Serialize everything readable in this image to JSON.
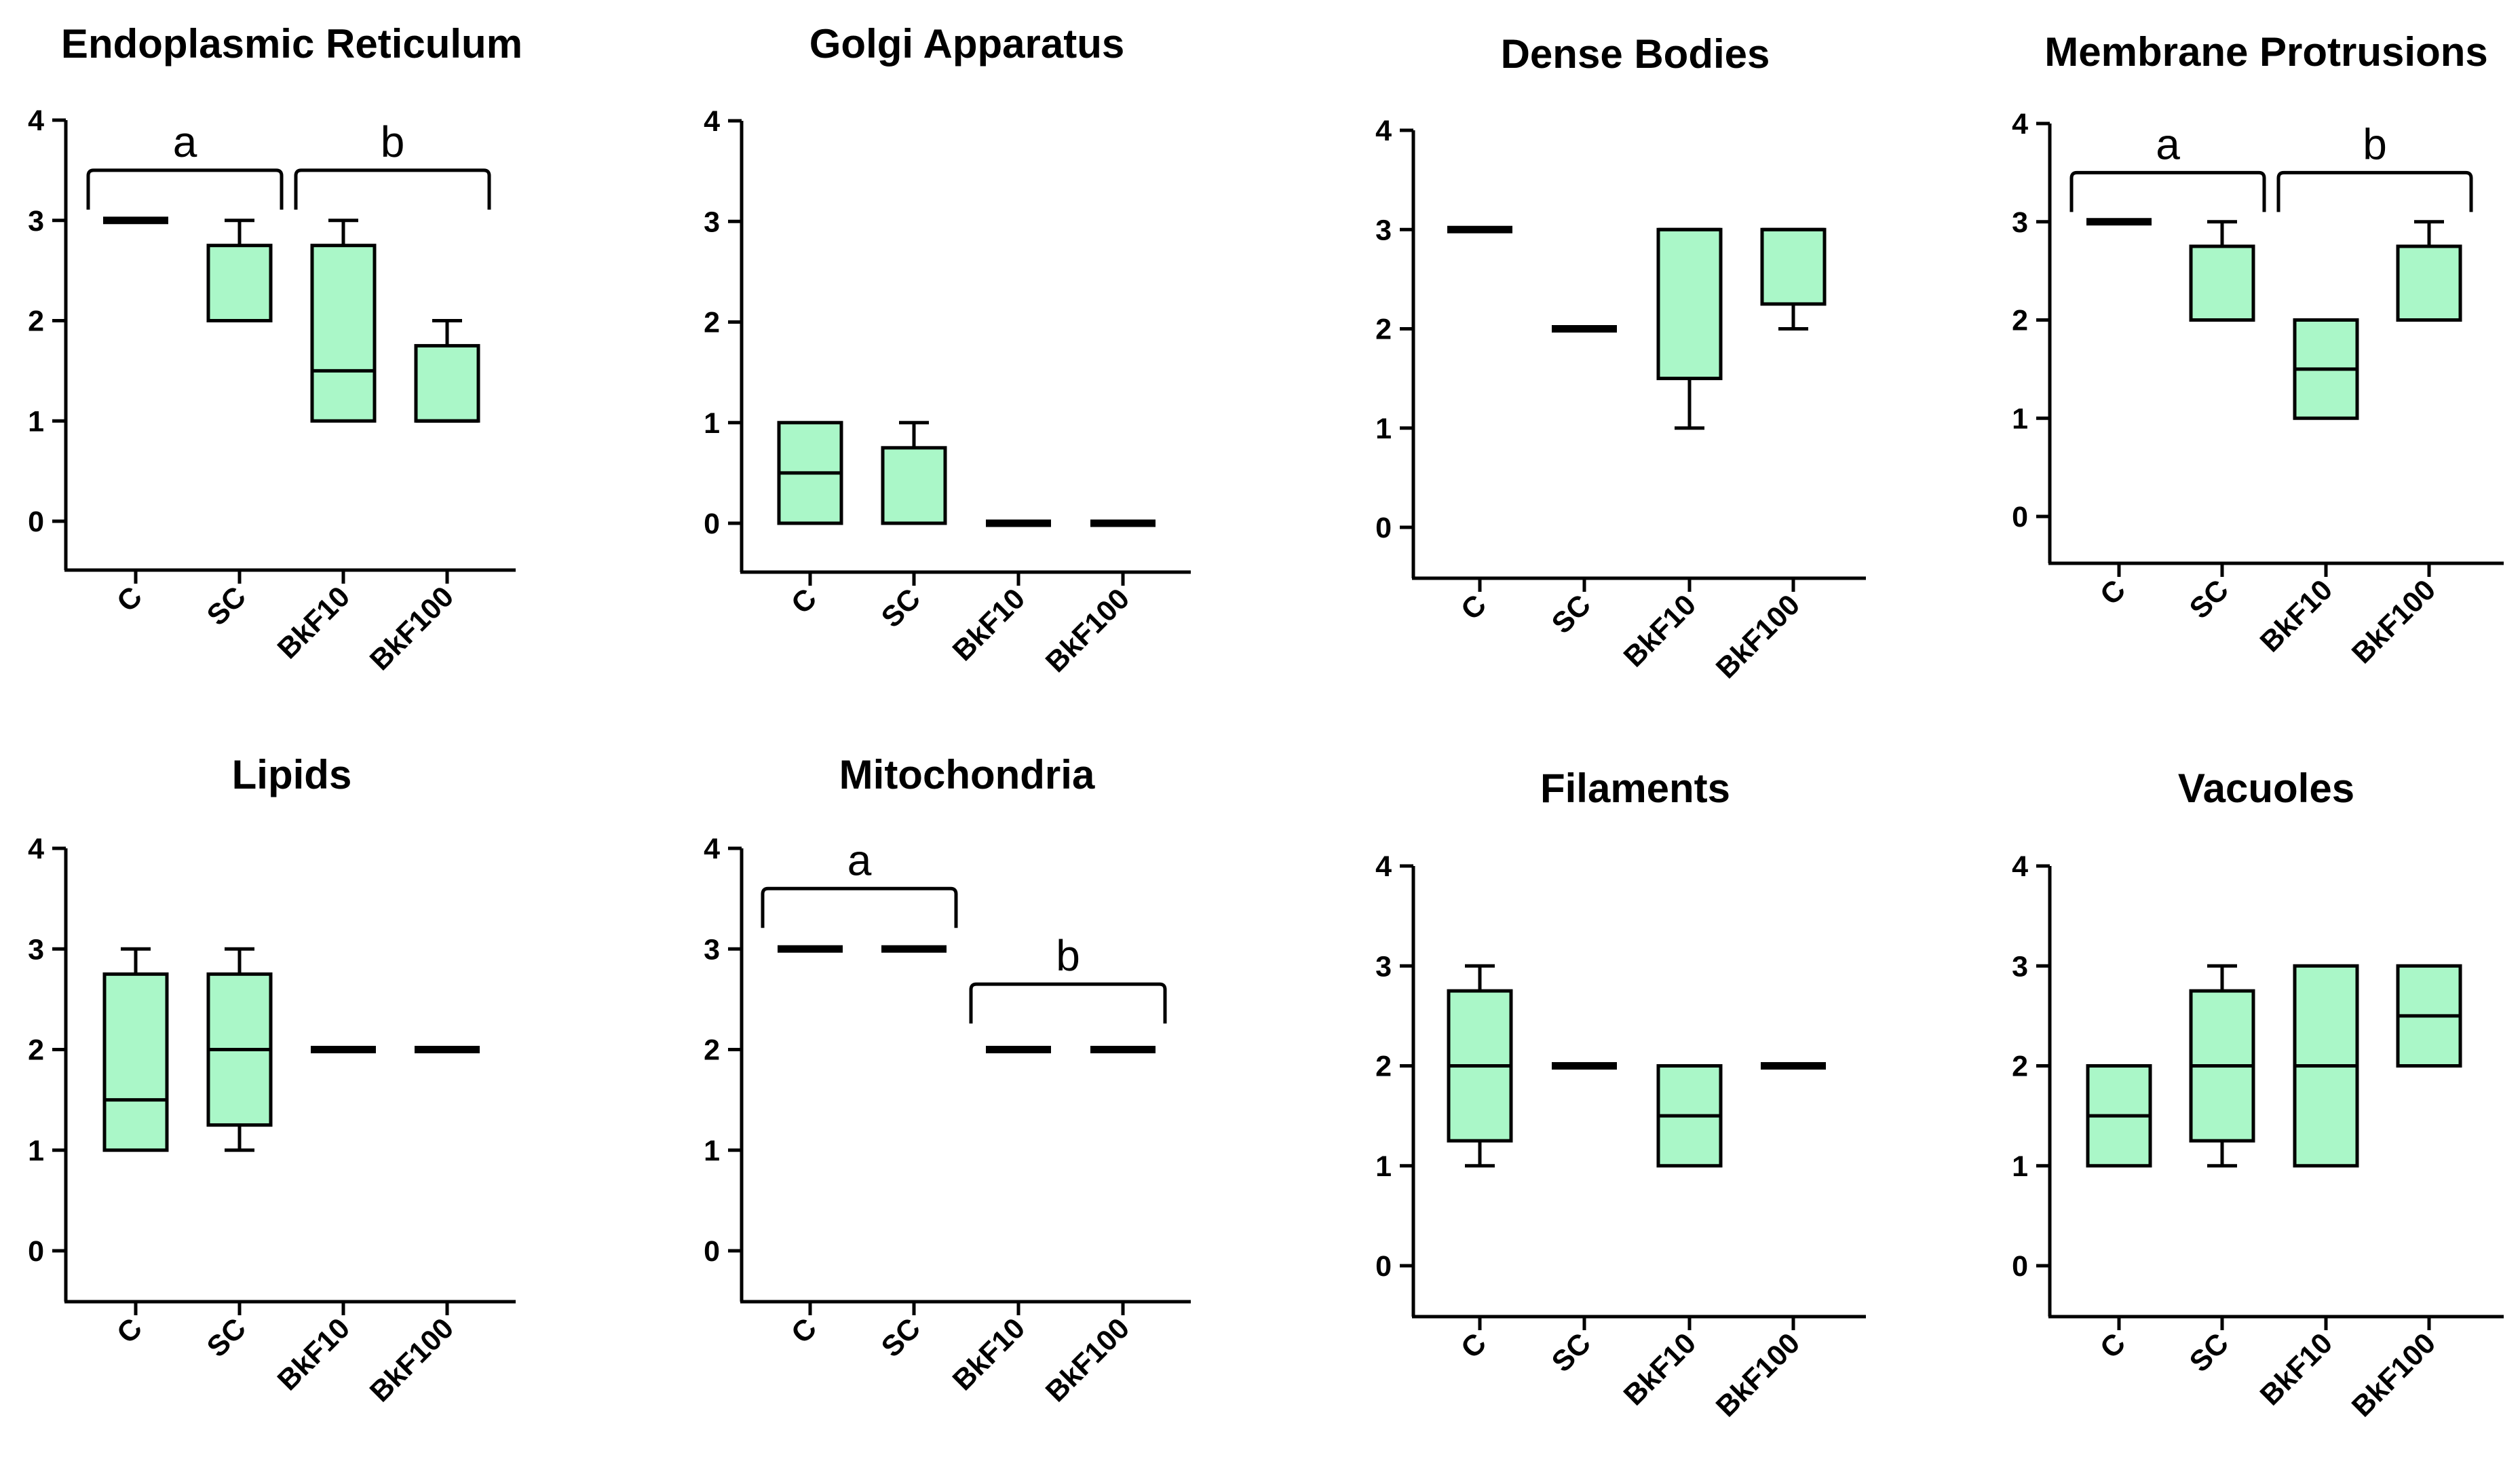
{
  "figure": {
    "description": "Box plots of organelle scores by group (C, SC, BkF10, BkF100)"
  },
  "colors": {
    "box_fill": "#aaf7c8",
    "stroke": "#000000",
    "background": "#ffffff"
  },
  "chart_data": [
    {
      "type": "box",
      "title": "Endoplasmic Reticulum",
      "categories": [
        "C",
        "SC",
        "BkF10",
        "BkF100"
      ],
      "ylim": [
        -0.5,
        4
      ],
      "yticks": [
        0,
        1,
        2,
        3,
        4
      ],
      "boxes": [
        {
          "min": 3,
          "q1": 3,
          "median": 3,
          "q3": 3,
          "max": 3
        },
        {
          "min": 2,
          "q1": 2,
          "median": 2,
          "q3": 2.75,
          "max": 3
        },
        {
          "min": 1,
          "q1": 1,
          "median": 1.5,
          "q3": 2.75,
          "max": 3
        },
        {
          "min": 1,
          "q1": 1,
          "median": 1,
          "q3": 1.75,
          "max": 2
        }
      ],
      "brackets": [
        {
          "from": 0,
          "to": 1,
          "label": "a",
          "level": 3.5
        },
        {
          "from": 2,
          "to": 3,
          "label": "b",
          "level": 3.5
        }
      ]
    },
    {
      "type": "box",
      "title": "Golgi Apparatus",
      "categories": [
        "C",
        "SC",
        "BkF10",
        "BkF100"
      ],
      "ylim": [
        -0.5,
        4
      ],
      "yticks": [
        0,
        1,
        2,
        3,
        4
      ],
      "boxes": [
        {
          "min": 0,
          "q1": 0,
          "median": 0.5,
          "q3": 1,
          "max": 1
        },
        {
          "min": 0,
          "q1": 0,
          "median": 0,
          "q3": 0.75,
          "max": 1
        },
        {
          "min": 0,
          "q1": 0,
          "median": 0,
          "q3": 0,
          "max": 0
        },
        {
          "min": 0,
          "q1": 0,
          "median": 0,
          "q3": 0,
          "max": 0
        }
      ],
      "brackets": []
    },
    {
      "type": "box",
      "title": "Dense Bodies",
      "categories": [
        "C",
        "SC",
        "BkF10",
        "BkF100"
      ],
      "ylim": [
        -0.5,
        4
      ],
      "yticks": [
        0,
        1,
        2,
        3,
        4
      ],
      "boxes": [
        {
          "min": 3,
          "q1": 3,
          "median": 3,
          "q3": 3,
          "max": 3
        },
        {
          "min": 2,
          "q1": 2,
          "median": 2,
          "q3": 2,
          "max": 2
        },
        {
          "min": 1,
          "q1": 1.5,
          "median": 3,
          "q3": 3,
          "max": 3
        },
        {
          "min": 2,
          "q1": 2.25,
          "median": 3,
          "q3": 3,
          "max": 3
        }
      ],
      "brackets": []
    },
    {
      "type": "box",
      "title": "Membrane Protrusions",
      "categories": [
        "C",
        "SC",
        "BkF10",
        "BkF100"
      ],
      "ylim": [
        -0.5,
        4
      ],
      "yticks": [
        0,
        1,
        2,
        3,
        4
      ],
      "boxes": [
        {
          "min": 3,
          "q1": 3,
          "median": 3,
          "q3": 3,
          "max": 3
        },
        {
          "min": 2,
          "q1": 2,
          "median": 2,
          "q3": 2.75,
          "max": 3
        },
        {
          "min": 1,
          "q1": 1,
          "median": 1.5,
          "q3": 2,
          "max": 2
        },
        {
          "min": 2,
          "q1": 2,
          "median": 2,
          "q3": 2.75,
          "max": 3
        }
      ],
      "brackets": [
        {
          "from": 0,
          "to": 1,
          "label": "a",
          "level": 3.5
        },
        {
          "from": 2,
          "to": 3,
          "label": "b",
          "level": 3.5
        }
      ]
    },
    {
      "type": "box",
      "title": "Lipids",
      "categories": [
        "C",
        "SC",
        "BkF10",
        "BkF100"
      ],
      "ylim": [
        -0.5,
        4
      ],
      "yticks": [
        0,
        1,
        2,
        3,
        4
      ],
      "boxes": [
        {
          "min": 1,
          "q1": 1,
          "median": 1.5,
          "q3": 2.75,
          "max": 3
        },
        {
          "min": 1,
          "q1": 1.25,
          "median": 2,
          "q3": 2.75,
          "max": 3
        },
        {
          "min": 2,
          "q1": 2,
          "median": 2,
          "q3": 2,
          "max": 2
        },
        {
          "min": 2,
          "q1": 2,
          "median": 2,
          "q3": 2,
          "max": 2
        }
      ],
      "brackets": []
    },
    {
      "type": "box",
      "title": "Mitochondria",
      "categories": [
        "C",
        "SC",
        "BkF10",
        "BkF100"
      ],
      "ylim": [
        -0.5,
        4
      ],
      "yticks": [
        0,
        1,
        2,
        3,
        4
      ],
      "boxes": [
        {
          "min": 3,
          "q1": 3,
          "median": 3,
          "q3": 3,
          "max": 3
        },
        {
          "min": 3,
          "q1": 3,
          "median": 3,
          "q3": 3,
          "max": 3
        },
        {
          "min": 2,
          "q1": 2,
          "median": 2,
          "q3": 2,
          "max": 2
        },
        {
          "min": 2,
          "q1": 2,
          "median": 2,
          "q3": 2,
          "max": 2
        }
      ],
      "brackets": [
        {
          "from": 0,
          "to": 1,
          "label": "a",
          "level": 3.6
        },
        {
          "from": 2,
          "to": 3,
          "label": "b",
          "level": 2.65
        }
      ]
    },
    {
      "type": "box",
      "title": "Filaments",
      "categories": [
        "C",
        "SC",
        "BkF10",
        "BkF100"
      ],
      "ylim": [
        -0.5,
        4
      ],
      "yticks": [
        0,
        1,
        2,
        3,
        4
      ],
      "boxes": [
        {
          "min": 1,
          "q1": 1.25,
          "median": 2,
          "q3": 2.75,
          "max": 3
        },
        {
          "min": 2,
          "q1": 2,
          "median": 2,
          "q3": 2,
          "max": 2
        },
        {
          "min": 1,
          "q1": 1,
          "median": 1.5,
          "q3": 2,
          "max": 2
        },
        {
          "min": 2,
          "q1": 2,
          "median": 2,
          "q3": 2,
          "max": 2
        }
      ],
      "brackets": []
    },
    {
      "type": "box",
      "title": "Vacuoles",
      "categories": [
        "C",
        "SC",
        "BkF10",
        "BkF100"
      ],
      "ylim": [
        -0.5,
        4
      ],
      "yticks": [
        0,
        1,
        2,
        3,
        4
      ],
      "boxes": [
        {
          "min": 1,
          "q1": 1,
          "median": 1.5,
          "q3": 2,
          "max": 2
        },
        {
          "min": 1,
          "q1": 1.25,
          "median": 2,
          "q3": 2.75,
          "max": 3
        },
        {
          "min": 1,
          "q1": 1,
          "median": 2,
          "q3": 3,
          "max": 3
        },
        {
          "min": 2,
          "q1": 2,
          "median": 2.5,
          "q3": 3,
          "max": 3
        }
      ],
      "brackets": []
    }
  ]
}
